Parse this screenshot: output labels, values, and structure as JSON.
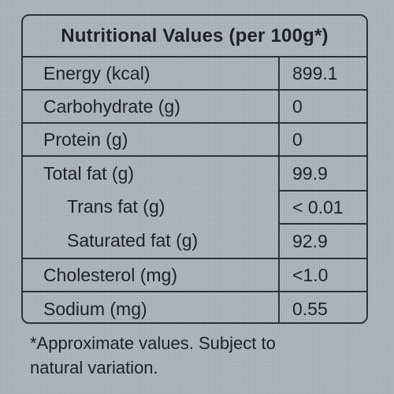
{
  "table": {
    "title": "Nutritional Values (per 100g*)",
    "rows": [
      {
        "label": "Energy (kcal)",
        "value": "899.1"
      },
      {
        "label": "Carbohydrate (g)",
        "value": "0"
      },
      {
        "label": "Protein (g)",
        "value": "0"
      },
      {
        "label": "Total fat (g)",
        "value": "99.9"
      },
      {
        "label": "Trans fat (g)",
        "value": "< 0.01"
      },
      {
        "label": "Saturated fat (g)",
        "value": "92.9"
      },
      {
        "label": "Cholesterol (mg)",
        "value": "<1.0"
      },
      {
        "label": "Sodium (mg)",
        "value": "0.55"
      }
    ]
  },
  "footnote": {
    "line1": "*Approximate values. Subject to",
    "line2": "natural variation."
  }
}
